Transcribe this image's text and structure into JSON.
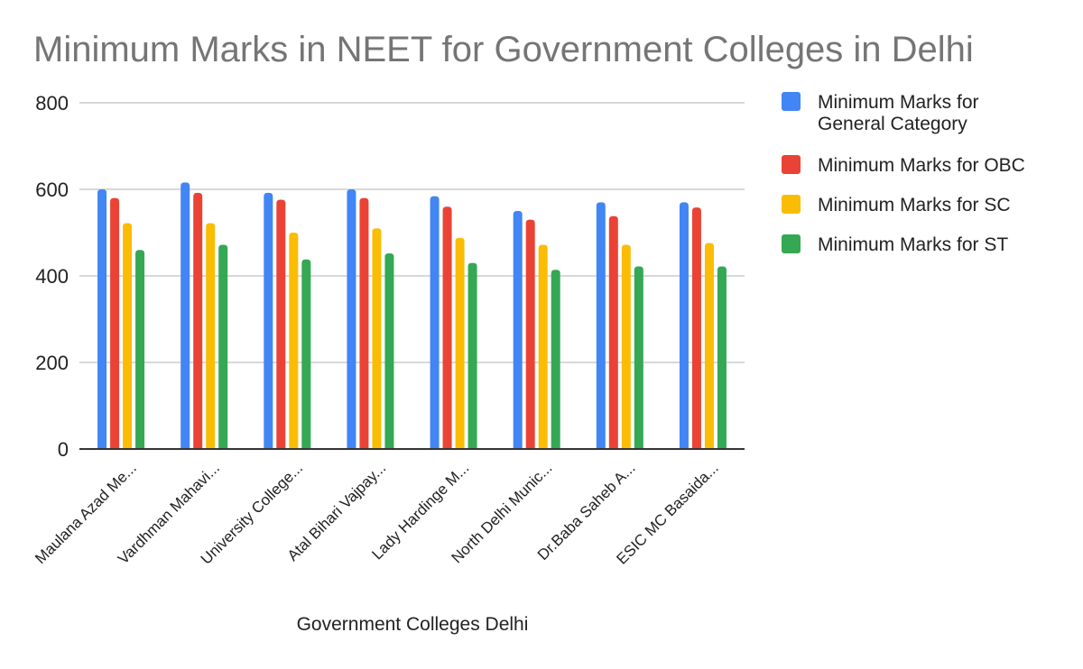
{
  "chart_data": {
    "type": "bar",
    "title": "Minimum Marks in NEET for Government Colleges in Delhi",
    "xlabel": "Government Colleges Delhi",
    "ylabel": "",
    "ylim": [
      0,
      800
    ],
    "yticks": [
      0,
      200,
      400,
      600,
      800
    ],
    "grid": true,
    "legend_position": "right",
    "categories": [
      "Maulana Azad Me...",
      "Vardhman Mahavi...",
      "University College...",
      "Atal Bihari Vajpay...",
      "Lady Hardinge M...",
      "North Delhi Munic...",
      "Dr.Baba Saheb A...",
      "ESIC MC Basaida..."
    ],
    "series": [
      {
        "name": "Minimum Marks for General Category",
        "color": "#4285F4",
        "values": [
          600,
          616,
          592,
          600,
          584,
          550,
          570,
          570
        ]
      },
      {
        "name": "Minimum Marks for OBC",
        "color": "#EA4335",
        "values": [
          580,
          592,
          576,
          580,
          560,
          530,
          538,
          558
        ]
      },
      {
        "name": "Minimum Marks for SC",
        "color": "#FBBC04",
        "values": [
          522,
          522,
          500,
          510,
          488,
          472,
          472,
          476
        ]
      },
      {
        "name": "Minimum Marks for ST",
        "color": "#34A853",
        "values": [
          460,
          472,
          438,
          452,
          430,
          414,
          422,
          422
        ]
      }
    ]
  }
}
